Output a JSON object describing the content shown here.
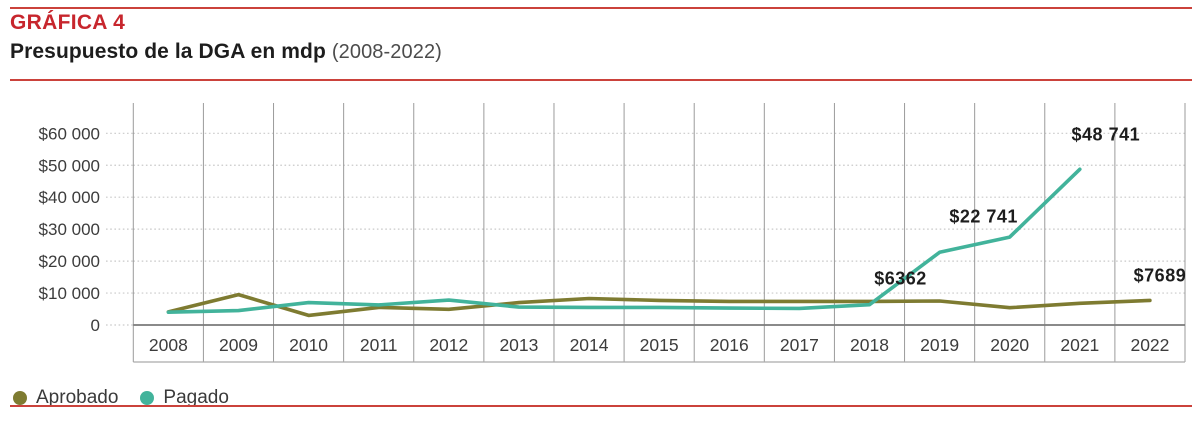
{
  "header": {
    "kicker": "GRÁFICA 4",
    "title": "Presupuesto de la DGA en mdp",
    "title_period": "(2008-2022)"
  },
  "legend": {
    "items": [
      {
        "label": "Aprobado",
        "color": "#7e7b31"
      },
      {
        "label": "Pagado",
        "color": "#42b39b"
      }
    ]
  },
  "colors": {
    "accent_red": "#c7262d",
    "rule_red": "#cb423b",
    "aprobado_line": "#7e7b31",
    "pagado_line": "#42b39b",
    "grid_vertical": "#9b9b9b",
    "grid_horizontal": "#c9c9c9",
    "zero_axis": "#7a7a7a",
    "axis_text": "#3c3c3c",
    "annotation_text": "#1d1d1d"
  },
  "chart_data": {
    "type": "line",
    "title": "Presupuesto de la DGA en mdp (2008-2022)",
    "ylabel": "",
    "xlabel": "",
    "currency_unit": "mdp",
    "grid": true,
    "legend_position": "bottom-left",
    "categories": [
      "2008",
      "2009",
      "2010",
      "2011",
      "2012",
      "2013",
      "2014",
      "2015",
      "2016",
      "2017",
      "2018",
      "2019",
      "2020",
      "2021",
      "2022"
    ],
    "series": [
      {
        "name": "Aprobado",
        "color": "#7e7b31",
        "values": [
          4100,
          9500,
          3000,
          5500,
          4900,
          7000,
          8300,
          7700,
          7400,
          7400,
          7400,
          7500,
          5400,
          6800,
          7689
        ]
      },
      {
        "name": "Pagado",
        "color": "#42b39b",
        "values": [
          4000,
          4500,
          7000,
          6300,
          7800,
          5600,
          5500,
          5500,
          5300,
          5200,
          6362,
          22741,
          27500,
          48741,
          null
        ]
      }
    ],
    "ylim": [
      0,
      63000
    ],
    "y_ticks": [
      60000,
      50000,
      40000,
      30000,
      20000,
      10000,
      0
    ],
    "y_tick_labels": [
      "$60 000",
      "$50 000",
      "$40 000",
      "$30 000",
      "$20 000",
      "$10 000",
      "0"
    ],
    "annotations": [
      {
        "text": "$6362",
        "series": "Pagado",
        "category": "2018",
        "value": 6362
      },
      {
        "text": "$22 741",
        "series": "Pagado",
        "category": "2019",
        "value": 22741
      },
      {
        "text": "$48 741",
        "series": "Pagado",
        "category": "2021",
        "value": 48741
      },
      {
        "text": "$7689",
        "series": "Aprobado",
        "category": "2022",
        "value": 7689
      }
    ]
  }
}
